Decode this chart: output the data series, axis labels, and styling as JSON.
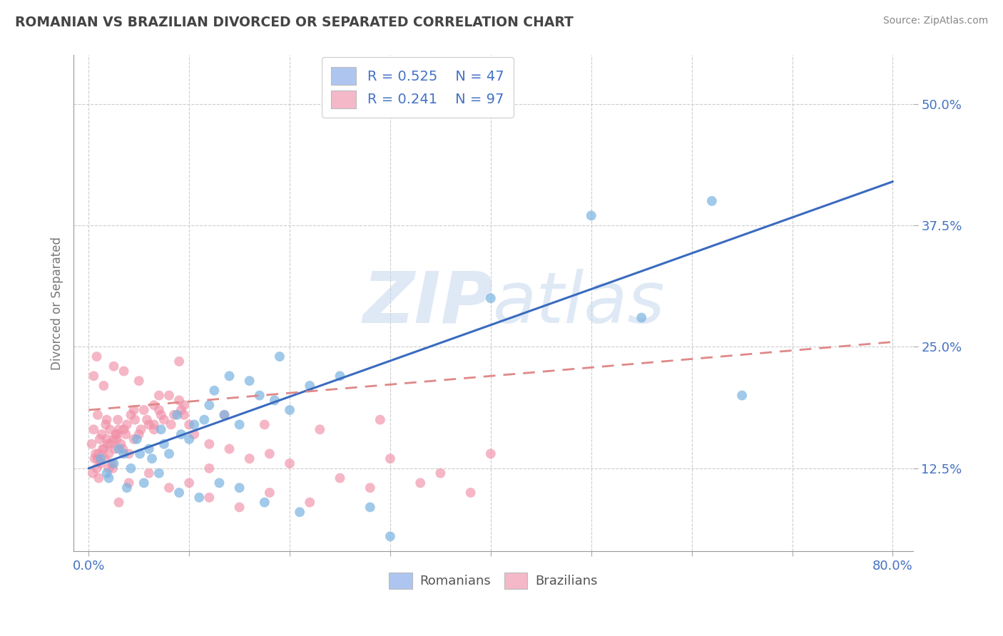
{
  "title": "ROMANIAN VS BRAZILIAN DIVORCED OR SEPARATED CORRELATION CHART",
  "source": "Source: ZipAtlas.com",
  "ylabel": "Divorced or Separated",
  "legend_romanian": {
    "R": "0.525",
    "N": "47",
    "color": "#aec6ef"
  },
  "legend_brazilian": {
    "R": "0.241",
    "N": "97",
    "color": "#f4b8c8"
  },
  "romanian_color": "#7ab3e0",
  "brazilian_color": "#f090a8",
  "trendline_romanian_color": "#3a6bbf",
  "trendline_brazilian_color": "#e08888",
  "rom_x": [
    1.2,
    1.8,
    2.5,
    3.0,
    4.2,
    5.1,
    6.3,
    7.5,
    8.0,
    9.2,
    10.0,
    11.5,
    12.0,
    13.5,
    15.0,
    17.0,
    18.5,
    20.0,
    22.0,
    25.0,
    3.5,
    4.8,
    6.0,
    7.2,
    8.8,
    10.5,
    12.5,
    14.0,
    16.0,
    19.0,
    2.0,
    3.8,
    5.5,
    7.0,
    9.0,
    11.0,
    13.0,
    15.0,
    17.5,
    21.0,
    28.0,
    40.0,
    62.0,
    65.0,
    50.0,
    55.0,
    30.0
  ],
  "rom_y": [
    13.5,
    12.0,
    13.0,
    14.5,
    12.5,
    14.0,
    13.5,
    15.0,
    14.0,
    16.0,
    15.5,
    17.5,
    19.0,
    18.0,
    17.0,
    20.0,
    19.5,
    18.5,
    21.0,
    22.0,
    14.0,
    15.5,
    14.5,
    16.5,
    18.0,
    17.0,
    20.5,
    22.0,
    21.5,
    24.0,
    11.5,
    10.5,
    11.0,
    12.0,
    10.0,
    9.5,
    11.0,
    10.5,
    9.0,
    8.0,
    8.5,
    30.0,
    40.0,
    20.0,
    38.5,
    28.0,
    5.5
  ],
  "braz_x": [
    0.3,
    0.5,
    0.7,
    0.9,
    1.1,
    1.3,
    1.5,
    1.7,
    1.9,
    2.1,
    2.3,
    2.5,
    2.7,
    2.9,
    3.2,
    3.5,
    3.8,
    4.2,
    4.6,
    5.0,
    5.5,
    6.0,
    6.5,
    7.0,
    7.5,
    8.0,
    8.5,
    9.0,
    9.5,
    10.0,
    0.4,
    0.6,
    0.8,
    1.0,
    1.2,
    1.4,
    1.6,
    1.8,
    2.0,
    2.2,
    2.4,
    2.6,
    2.8,
    3.0,
    3.4,
    3.7,
    4.0,
    4.5,
    5.2,
    5.8,
    6.5,
    7.2,
    8.2,
    9.2,
    10.5,
    12.0,
    14.0,
    16.0,
    18.0,
    20.0,
    25.0,
    30.0,
    35.0,
    40.0,
    0.5,
    0.8,
    1.5,
    2.5,
    3.5,
    5.0,
    7.0,
    9.0,
    12.0,
    15.0,
    18.0,
    22.0,
    28.0,
    33.0,
    38.0,
    1.0,
    2.0,
    3.0,
    4.0,
    6.0,
    8.0,
    10.0,
    12.0,
    0.9,
    1.8,
    2.8,
    4.5,
    6.5,
    9.5,
    13.5,
    17.5,
    23.0,
    29.0
  ],
  "braz_y": [
    15.0,
    16.5,
    14.0,
    13.5,
    15.5,
    16.0,
    14.5,
    17.0,
    15.0,
    16.5,
    13.0,
    15.5,
    16.0,
    17.5,
    15.0,
    16.5,
    17.0,
    18.0,
    17.5,
    16.0,
    18.5,
    17.0,
    19.0,
    18.5,
    17.5,
    20.0,
    18.0,
    19.5,
    18.0,
    17.0,
    12.0,
    13.5,
    12.5,
    14.0,
    13.0,
    14.5,
    13.5,
    15.5,
    14.0,
    15.0,
    12.5,
    14.5,
    15.5,
    16.5,
    14.5,
    16.0,
    14.0,
    15.5,
    16.5,
    17.5,
    16.5,
    18.0,
    17.0,
    18.5,
    16.0,
    15.0,
    14.5,
    13.5,
    14.0,
    13.0,
    11.5,
    13.5,
    12.0,
    14.0,
    22.0,
    24.0,
    21.0,
    23.0,
    22.5,
    21.5,
    20.0,
    23.5,
    9.5,
    8.5,
    10.0,
    9.0,
    10.5,
    11.0,
    10.0,
    11.5,
    12.5,
    9.0,
    11.0,
    12.0,
    10.5,
    11.0,
    12.5,
    18.0,
    17.5,
    16.0,
    18.5,
    17.0,
    19.0,
    18.0,
    17.0,
    16.5,
    17.5
  ],
  "xlim": [
    -1.5,
    82.0
  ],
  "ylim": [
    4.0,
    55.0
  ],
  "ytick_vals": [
    12.5,
    25.0,
    37.5,
    50.0
  ],
  "xtick_vals": [
    0,
    10,
    20,
    30,
    40,
    50,
    60,
    70,
    80
  ],
  "rom_trend_x0": 0,
  "rom_trend_y0": 12.5,
  "rom_trend_x1": 80,
  "rom_trend_y1": 42.0,
  "braz_trend_x0": 0,
  "braz_trend_y0": 18.5,
  "braz_trend_x1": 80,
  "braz_trend_y1": 25.5
}
